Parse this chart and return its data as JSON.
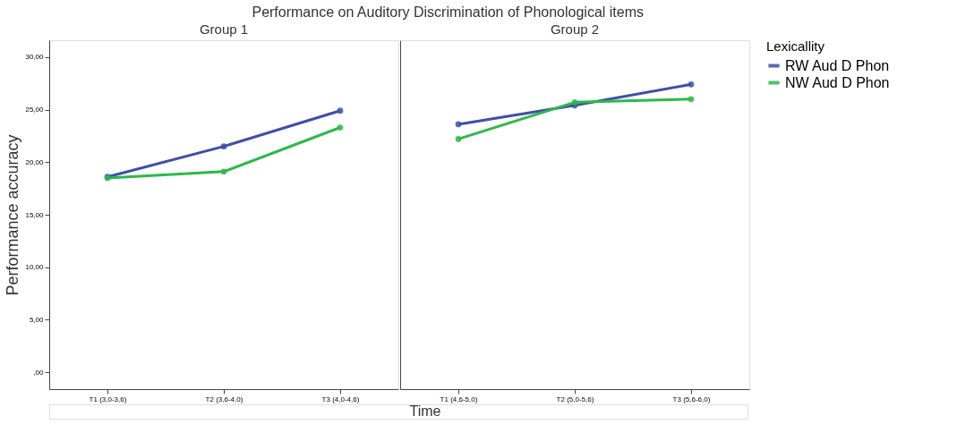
{
  "chart_data": [
    {
      "type": "line",
      "title": "Performance on Auditory Discrimination of Phonological items",
      "subtitle": "Group 1",
      "xlabel": "Time",
      "ylabel": "Performance accuracy",
      "categories": [
        "T1 (3,0-3,6)",
        "T2 (3,6-4,0)",
        "T3 (4,0-4,6)"
      ],
      "series": [
        {
          "name": "RW Aud D Phon",
          "color": "#3d4fa8",
          "values": [
            18.6,
            21.5,
            24.9
          ]
        },
        {
          "name": "NW Aud D Phon",
          "color": "#2db84a",
          "values": [
            18.5,
            19.1,
            23.3
          ]
        }
      ],
      "ylim": [
        -1.6,
        31.6
      ],
      "yticks": [
        {
          "value": 0,
          "label": ",00"
        },
        {
          "value": 5,
          "label": "5,00"
        },
        {
          "value": 10,
          "label": "10,00"
        },
        {
          "value": 15,
          "label": "15,00"
        },
        {
          "value": 20,
          "label": "20,00"
        },
        {
          "value": 25,
          "label": "25,00"
        },
        {
          "value": 30,
          "label": "30,00"
        }
      ],
      "grid": false,
      "marker": "circle",
      "legend": "right"
    },
    {
      "type": "line",
      "subtitle": "Group 2",
      "legend_title": "Lexicallity",
      "categories": [
        "T1 (4,6-5,0)",
        "T2 (5,0-5,6)",
        "T3 (5,6-6,0)"
      ],
      "series": [
        {
          "name": "RW Aud D Phon",
          "color": "#3d4fa8",
          "values": [
            23.6,
            25.4,
            27.4
          ]
        },
        {
          "name": "NW Aud D Phon",
          "color": "#2db84a",
          "values": [
            22.2,
            25.7,
            26.0
          ]
        }
      ],
      "ylim": [
        -1.6,
        31.6
      ],
      "tick_labels": "x",
      "grid": false,
      "marker": "circle",
      "legend": "right"
    }
  ]
}
